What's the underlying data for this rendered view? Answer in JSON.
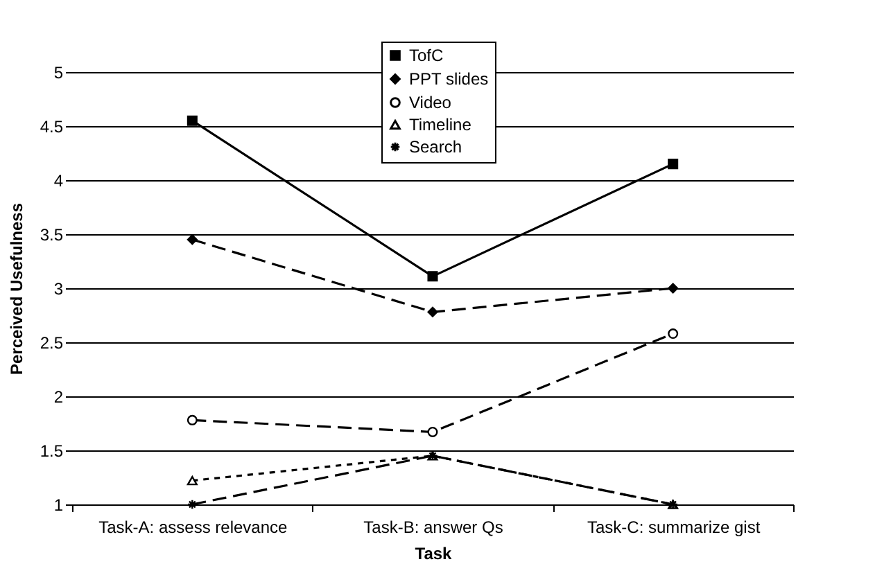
{
  "chart_data": {
    "type": "line",
    "xlabel": "Task",
    "ylabel": "Perceived Usefulness",
    "categories": [
      "Task-A: assess relevance",
      "Task-B: answer Qs",
      "Task-C: summarize gist"
    ],
    "series": [
      {
        "name": "TofC",
        "color": "#000000",
        "values": [
          4.55,
          3.11,
          4.15
        ],
        "marker": "square",
        "line_style": "solid"
      },
      {
        "name": "PPT slides",
        "color": "#000000",
        "values": [
          3.45,
          2.78,
          3.0
        ],
        "marker": "diamond",
        "line_style": "dashed"
      },
      {
        "name": "Video",
        "color": "#000000",
        "values": [
          1.78,
          1.67,
          2.58
        ],
        "marker": "circle",
        "line_style": "dashed"
      },
      {
        "name": "Timeline",
        "color": "#000000",
        "values": [
          1.22,
          1.45,
          1.0
        ],
        "marker": "triangle",
        "line_style": "dotted"
      },
      {
        "name": "Search",
        "color": "#000000",
        "values": [
          1.0,
          1.45,
          1.0
        ],
        "marker": "cross",
        "line_style": "dashed"
      }
    ],
    "ylim": [
      1,
      5
    ],
    "yticks": [
      1,
      1.5,
      2,
      2.5,
      3,
      3.5,
      4,
      4.5,
      5
    ],
    "grid": "y",
    "legend": "top"
  }
}
